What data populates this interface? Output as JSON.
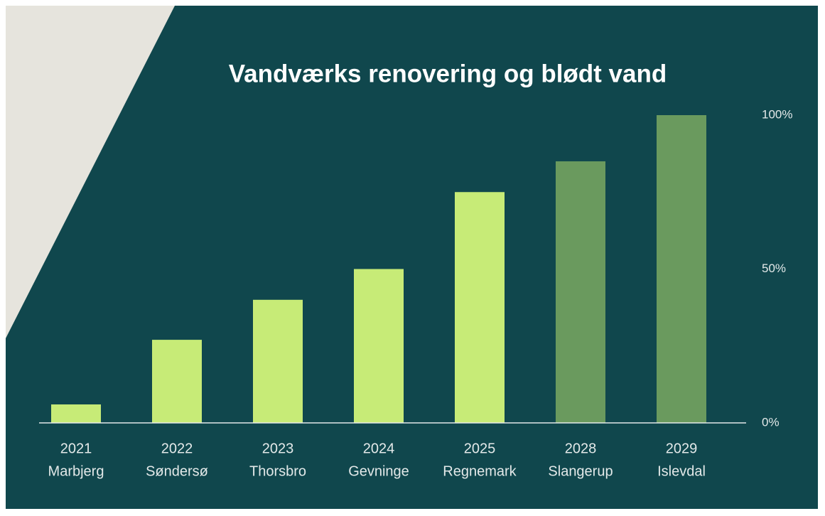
{
  "chart_data": {
    "type": "bar",
    "title": "Vandværks renovering og blødt vand",
    "categories": [
      "2021",
      "2022",
      "2023",
      "2024",
      "2025",
      "2028",
      "2029"
    ],
    "locations": [
      "Marbjerg",
      "Søndersø",
      "Thorsbro",
      "Gevninge",
      "Regnemark",
      "Slangerup",
      "Islevdal"
    ],
    "values": [
      6,
      27,
      40,
      50,
      75,
      85,
      100
    ],
    "colors": [
      "#c7eb77",
      "#c7eb77",
      "#c7eb77",
      "#c7eb77",
      "#c7eb77",
      "#6a9a5e",
      "#6a9a5e"
    ],
    "ylim": [
      0,
      100
    ],
    "yticks": [
      {
        "value": 0,
        "label": "0%"
      },
      {
        "value": 50,
        "label": "50%"
      },
      {
        "value": 100,
        "label": "100%"
      }
    ],
    "grid": false
  }
}
